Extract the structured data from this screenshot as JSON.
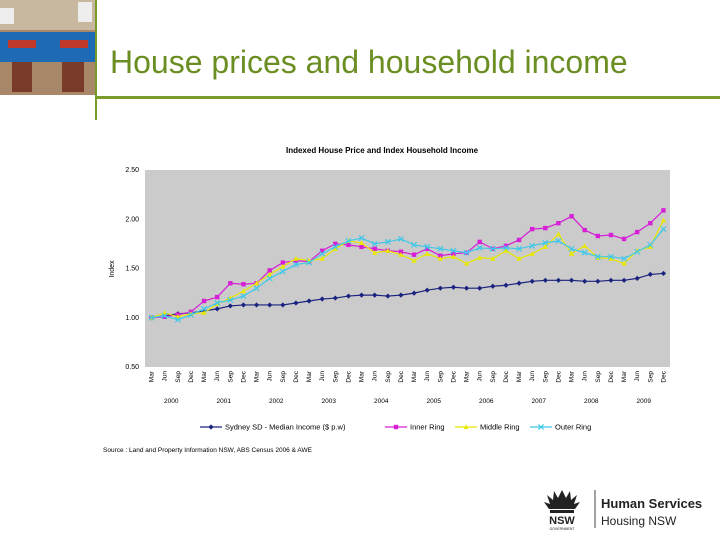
{
  "slide": {
    "title": "House prices and household income"
  },
  "logo": {
    "brand_line1": "NSW",
    "brand_line2": "GOVERNMENT",
    "org_line1": "Human Services",
    "org_line2": "Housing NSW"
  },
  "chart_data": {
    "type": "line",
    "title": "Indexed House Price and Index Household Income",
    "ylabel": "Index",
    "xlabel": "",
    "ylim": [
      0.5,
      2.5
    ],
    "yticks": [
      "2.50",
      "2.00",
      "1.50",
      "1.00",
      "0.50"
    ],
    "ytick_values": [
      2.5,
      2.0,
      1.5,
      1.0,
      0.5
    ],
    "categories": [
      "Mar",
      "Jun",
      "Sep",
      "Dec",
      "Mar",
      "Jun",
      "Sep",
      "Dec",
      "Mar",
      "Jun",
      "Sep",
      "Dec",
      "Mar",
      "Jun",
      "Sep",
      "Dec",
      "Mar",
      "Jun",
      "Sep",
      "Dec",
      "Mar",
      "Jun",
      "Sep",
      "Dec",
      "Mar",
      "Jun",
      "Sep",
      "Dec",
      "Mar",
      "Jun",
      "Sep",
      "Dec",
      "Mar",
      "Jun",
      "Sep",
      "Dec",
      "Mar",
      "Jun",
      "Sep",
      "Dec"
    ],
    "years": [
      "2000",
      "2001",
      "2002",
      "2003",
      "2004",
      "2005",
      "2006",
      "2007",
      "2008",
      "2009"
    ],
    "grid": false,
    "legend_position": "bottom",
    "source": "Source : Land and Property Information NSW, ABS Census 2006 & AWE",
    "series": [
      {
        "name": "Sydney SD - Median Income ($ p.w)",
        "color": "#1a237e",
        "marker": "diamond",
        "values": [
          1.0,
          1.02,
          1.04,
          1.05,
          1.07,
          1.09,
          1.12,
          1.13,
          1.13,
          1.13,
          1.13,
          1.15,
          1.17,
          1.19,
          1.2,
          1.22,
          1.23,
          1.23,
          1.22,
          1.23,
          1.25,
          1.28,
          1.3,
          1.31,
          1.3,
          1.3,
          1.32,
          1.33,
          1.35,
          1.37,
          1.38,
          1.38,
          1.38,
          1.37,
          1.37,
          1.38,
          1.38,
          1.4,
          1.44,
          1.45
        ]
      },
      {
        "name": "Inner Ring",
        "color": "#d61fd6",
        "marker": "square",
        "values": [
          1.0,
          1.01,
          1.03,
          1.06,
          1.17,
          1.21,
          1.35,
          1.34,
          1.35,
          1.48,
          1.56,
          1.58,
          1.57,
          1.68,
          1.75,
          1.74,
          1.72,
          1.7,
          1.68,
          1.67,
          1.64,
          1.7,
          1.63,
          1.65,
          1.66,
          1.77,
          1.7,
          1.73,
          1.79,
          1.9,
          1.91,
          1.96,
          2.03,
          1.89,
          1.83,
          1.84,
          1.8,
          1.87,
          1.96,
          2.09
        ]
      },
      {
        "name": "Middle Ring",
        "color": "#e8e800",
        "marker": "triangle",
        "values": [
          1.0,
          1.05,
          1.01,
          1.04,
          1.05,
          1.14,
          1.2,
          1.27,
          1.35,
          1.44,
          1.52,
          1.6,
          1.58,
          1.6,
          1.7,
          1.78,
          1.76,
          1.66,
          1.68,
          1.64,
          1.58,
          1.65,
          1.6,
          1.62,
          1.55,
          1.61,
          1.6,
          1.68,
          1.6,
          1.65,
          1.72,
          1.85,
          1.65,
          1.73,
          1.61,
          1.6,
          1.55,
          1.68,
          1.72,
          1.99
        ]
      },
      {
        "name": "Outer Ring",
        "color": "#40c8e8",
        "marker": "x",
        "values": [
          1.0,
          1.02,
          0.98,
          1.03,
          1.09,
          1.15,
          1.18,
          1.22,
          1.3,
          1.4,
          1.47,
          1.54,
          1.56,
          1.65,
          1.72,
          1.78,
          1.81,
          1.75,
          1.77,
          1.8,
          1.74,
          1.72,
          1.7,
          1.68,
          1.66,
          1.71,
          1.7,
          1.71,
          1.7,
          1.73,
          1.76,
          1.78,
          1.7,
          1.66,
          1.62,
          1.62,
          1.6,
          1.67,
          1.74,
          1.9
        ]
      }
    ]
  }
}
